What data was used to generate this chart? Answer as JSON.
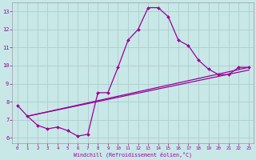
{
  "xlabel": "Windchill (Refroidissement éolien,°C)",
  "bg_color": "#c8e8e8",
  "line_color": "#990099",
  "grid_color": "#b0cccc",
  "xlim": [
    -0.5,
    23.5
  ],
  "ylim": [
    5.7,
    13.5
  ],
  "xticks": [
    0,
    1,
    2,
    3,
    4,
    5,
    6,
    7,
    8,
    9,
    10,
    11,
    12,
    13,
    14,
    15,
    16,
    17,
    18,
    19,
    20,
    21,
    22,
    23
  ],
  "yticks": [
    6,
    7,
    8,
    9,
    10,
    11,
    12,
    13
  ],
  "line1_x": [
    0,
    1,
    2,
    3,
    4,
    5,
    6,
    7,
    8,
    9,
    10,
    11,
    12,
    13,
    14,
    15,
    16,
    17,
    18,
    19,
    20,
    21,
    22,
    23
  ],
  "line1_y": [
    7.8,
    7.2,
    6.7,
    6.5,
    6.6,
    6.4,
    6.1,
    6.2,
    8.5,
    8.5,
    9.9,
    11.4,
    12.0,
    13.2,
    13.2,
    12.7,
    11.4,
    11.1,
    10.3,
    9.8,
    9.5,
    9.5,
    9.9,
    9.9
  ],
  "line2_x": [
    1,
    23
  ],
  "line2_y": [
    7.2,
    9.9
  ],
  "line3_x": [
    1,
    23
  ],
  "line3_y": [
    7.2,
    9.75
  ]
}
